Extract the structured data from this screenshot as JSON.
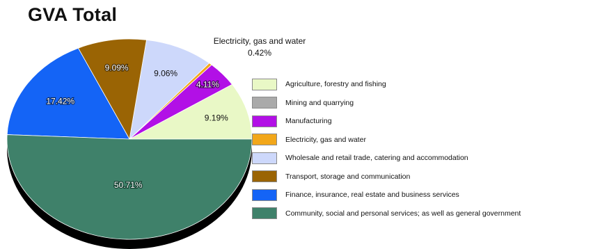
{
  "chart_data": {
    "type": "pie",
    "title": "GVA Total",
    "slices": [
      {
        "name": "Agriculture, forestry and fishing",
        "value": 9.19,
        "label": "9.19%",
        "color": "#e9f8c6"
      },
      {
        "name": "Mining and quarrying",
        "value": 0.0,
        "label": "",
        "color": "#aaaaaa"
      },
      {
        "name": "Manufacturing",
        "value": 4.11,
        "label": "4.11%",
        "color": "#b210e6"
      },
      {
        "name": "Electricity, gas and water",
        "value": 0.42,
        "label": "0.42%",
        "color": "#f2a71a"
      },
      {
        "name": "Wholesale and retail trade, catering and accommodation",
        "value": 9.06,
        "label": "9.06%",
        "color": "#cdd8fb"
      },
      {
        "name": "Transport, storage and communication",
        "value": 9.09,
        "label": "9.09%",
        "color": "#9a6404"
      },
      {
        "name": "Finance, insurance, real estate and business services",
        "value": 17.42,
        "label": "17.42%",
        "color": "#1464f6"
      },
      {
        "name": "Community, social and personal services; as well as general government",
        "value": 50.71,
        "label": "50.71%",
        "color": "#3f816a"
      }
    ],
    "callout": {
      "name": "Electricity, gas and water",
      "value_label": "0.42%"
    },
    "legend_position": "right",
    "shadow_color": "#000000"
  }
}
